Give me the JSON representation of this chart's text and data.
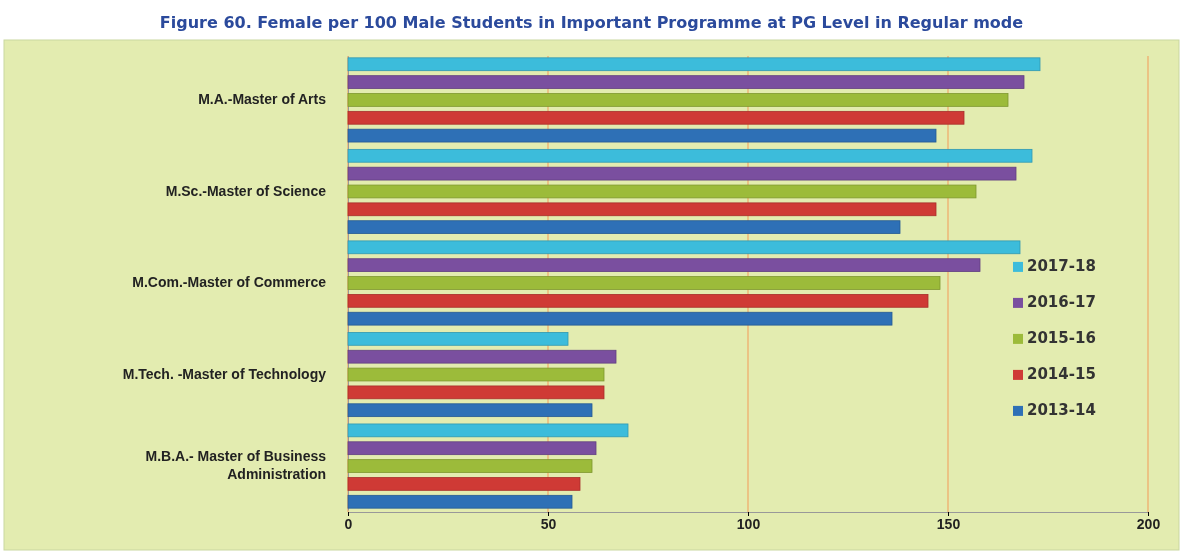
{
  "chart_data": {
    "type": "bar",
    "orientation": "horizontal",
    "title": "Figure 60. Female per 100 Male Students in Important Programme at PG Level in Regular mode",
    "categories": [
      "M.A.-Master of Arts",
      "M.Sc.-Master of Science",
      "M.Com.-Master of Commerce",
      "M.Tech. -Master of Technology",
      "M.B.A.- Master of Business Administration"
    ],
    "series": [
      {
        "name": "2017-18",
        "color": "#3cbcdb",
        "values": [
          173,
          171,
          168,
          55,
          70
        ]
      },
      {
        "name": "2016-17",
        "color": "#7a4f9f",
        "values": [
          169,
          167,
          158,
          67,
          62
        ]
      },
      {
        "name": "2015-16",
        "color": "#9cbb3a",
        "values": [
          165,
          157,
          148,
          64,
          61
        ]
      },
      {
        "name": "2014-15",
        "color": "#cf3a35",
        "values": [
          154,
          147,
          145,
          64,
          58
        ]
      },
      {
        "name": "2013-14",
        "color": "#2e70b6",
        "values": [
          147,
          138,
          136,
          61,
          56
        ]
      }
    ],
    "xlim": [
      0,
      200
    ],
    "xticks": [
      0,
      50,
      100,
      150,
      200
    ],
    "grid": "x",
    "legend": "right"
  }
}
